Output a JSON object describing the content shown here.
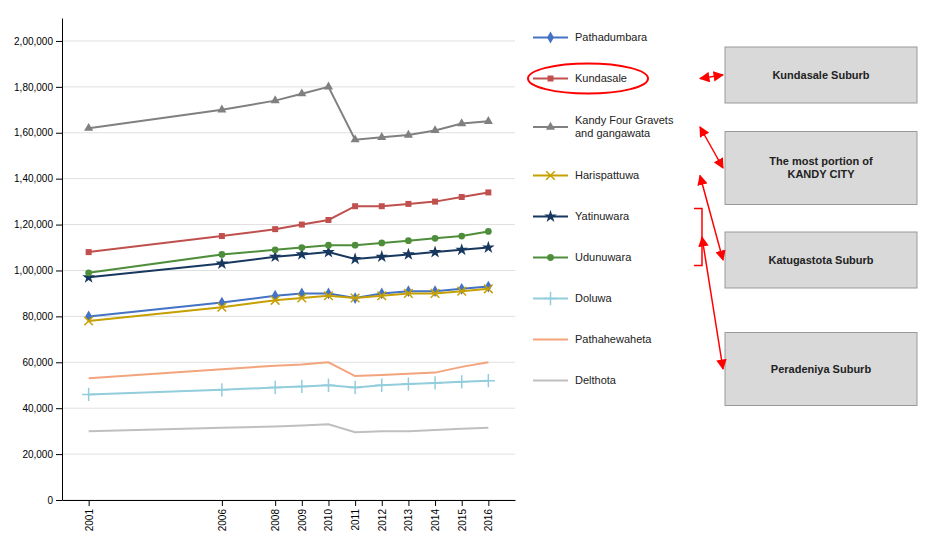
{
  "chart_data": {
    "type": "line",
    "x": [
      2001,
      2006,
      2008,
      2009,
      2010,
      2011,
      2012,
      2013,
      2014,
      2015,
      2016
    ],
    "xlim": [
      2000,
      2017
    ],
    "xticks": [
      2001,
      2006,
      2008,
      2009,
      2010,
      2011,
      2012,
      2013,
      2014,
      2015,
      2016
    ],
    "ylim": [
      0,
      210000
    ],
    "yticks": [
      0,
      {
        "value": 20000,
        "label": "20,000"
      },
      {
        "value": 40000,
        "label": "40,000"
      },
      {
        "value": 60000,
        "label": "60,000"
      },
      {
        "value": 80000,
        "label": "80,000"
      },
      {
        "value": 100000,
        "label": "1,00,000"
      },
      {
        "value": 120000,
        "label": "1,20,000"
      },
      {
        "value": 140000,
        "label": "1,40,000"
      },
      {
        "value": 160000,
        "label": "1,60,000"
      },
      {
        "value": 180000,
        "label": "1,80,000"
      },
      {
        "value": 200000,
        "label": "2,00,000"
      }
    ],
    "grid": true,
    "legend": "right",
    "series": [
      {
        "name": "Pathadumbara",
        "color": "#4472C4",
        "marker": "diamond",
        "values": [
          80000,
          86000,
          89000,
          90000,
          90000,
          88000,
          90000,
          91000,
          91000,
          92000,
          93000
        ]
      },
      {
        "name": "Kundasale",
        "color": "#C0504D",
        "marker": "square",
        "values": [
          108000,
          115000,
          118000,
          120000,
          122000,
          128000,
          128000,
          129000,
          130000,
          132000,
          134000
        ]
      },
      {
        "name": "Kandy Four Gravets\nand gangawata",
        "color": "#808080",
        "marker": "triangle",
        "values": [
          162000,
          170000,
          174000,
          177000,
          180000,
          157000,
          158000,
          159000,
          161000,
          164000,
          165000
        ]
      },
      {
        "name": "Harispattuwa",
        "color": "#C6A000",
        "marker": "x",
        "values": [
          78000,
          84000,
          87000,
          88000,
          89000,
          88000,
          89000,
          90000,
          90000,
          91000,
          92000
        ]
      },
      {
        "name": "Yatinuwara",
        "color": "#17375E",
        "marker": "star",
        "values": [
          97000,
          103000,
          106000,
          107000,
          108000,
          105000,
          106000,
          107000,
          108000,
          109000,
          110000
        ]
      },
      {
        "name": "Udunuwara",
        "color": "#4E8E3B",
        "marker": "circle",
        "values": [
          99000,
          107000,
          109000,
          110000,
          111000,
          111000,
          112000,
          113000,
          114000,
          115000,
          117000
        ]
      },
      {
        "name": "Doluwa",
        "color": "#92CDDC",
        "marker": "plus",
        "values": [
          46000,
          48000,
          49000,
          49500,
          50000,
          49000,
          50000,
          50500,
          51000,
          51500,
          52000
        ]
      },
      {
        "name": "Pathahewaheta",
        "color": "#F4A47C",
        "marker": "none",
        "values": [
          53000,
          57000,
          58500,
          59000,
          60000,
          54000,
          54500,
          55000,
          55500,
          58000,
          60000
        ]
      },
      {
        "name": "Delthota",
        "color": "#BFBFBF",
        "marker": "none",
        "values": [
          30000,
          31500,
          32000,
          32500,
          33000,
          29500,
          30000,
          30000,
          30500,
          31000,
          31500
        ]
      }
    ],
    "annotations": [
      "Kundasale Suburb",
      "The most portion of\nKANDY CITY",
      "Katugastota Suburb",
      "Peradeniya Suburb"
    ]
  }
}
